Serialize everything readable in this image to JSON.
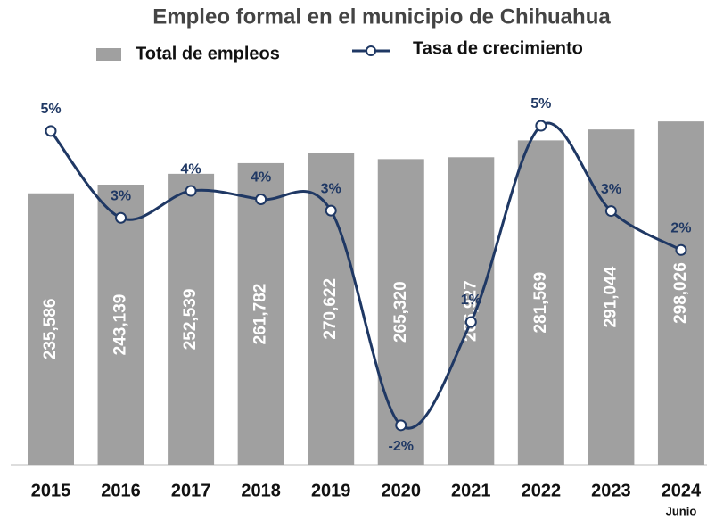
{
  "chart_data": {
    "type": "bar",
    "title": "Empleo formal en el municipio de Chihuahua",
    "categories": [
      "2015",
      "2016",
      "2017",
      "2018",
      "2019",
      "2020",
      "2021",
      "2022",
      "2023",
      "2024"
    ],
    "annotations": [
      "Junio"
    ],
    "series": [
      {
        "name": "Total de empleos",
        "type": "bar",
        "color": "#a0a0a0",
        "values": [
          235586,
          243139,
          252539,
          261782,
          270622,
          265320,
          266927,
          281569,
          291044,
          298026
        ],
        "value_labels": [
          "235,586",
          "243,139",
          "252,539",
          "261,782",
          "270,622",
          "265,320",
          "266,927",
          "281,569",
          "291,044",
          "298,026"
        ]
      },
      {
        "name": "Tasa de crecimiento",
        "type": "line",
        "axis": "y2",
        "color": "#1f3864",
        "values": [
          5.36,
          3.2,
          3.87,
          3.66,
          3.38,
          -1.96,
          0.61,
          5.49,
          3.37,
          2.4
        ],
        "value_labels": [
          "5%",
          "3%",
          "4%",
          "4%",
          "3%",
          "-2%",
          "1%",
          "5%",
          "3%",
          "2%"
        ]
      }
    ],
    "ylim": [
      0,
      326000
    ],
    "y2lim": [
      -2.94,
      6.4
    ]
  }
}
